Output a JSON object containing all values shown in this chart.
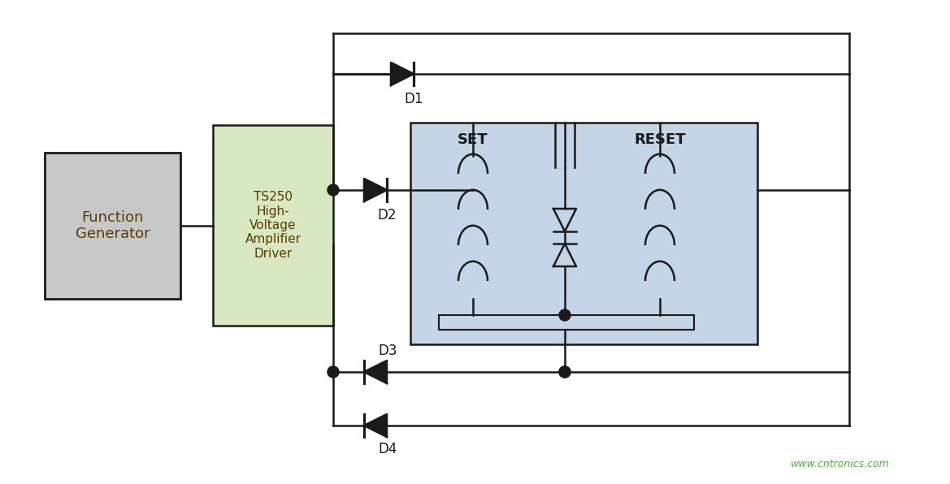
{
  "bg_color": "#ffffff",
  "fg_color": "#1a1a1a",
  "relay_bg": "#c5d5e8",
  "amp_bg": "#d8e8c0",
  "gen_bg": "#c8c8c8",
  "text_color": "#5a3a00",
  "line_color": "#1a1a1a",
  "wm_color": "#55aa44",
  "watermark": "www.cntronics.com",
  "labels": {
    "fg_line1": "Function",
    "fg_line2": "Generator",
    "amp": "TS250\nHigh-\nVoltage\nAmplifier\nDriver",
    "set": "SET",
    "reset": "RESET",
    "d1": "D1",
    "d2": "D2",
    "d3": "D3",
    "d4": "D4"
  },
  "fig_w": 11.69,
  "fig_h": 5.96,
  "dpi": 100
}
